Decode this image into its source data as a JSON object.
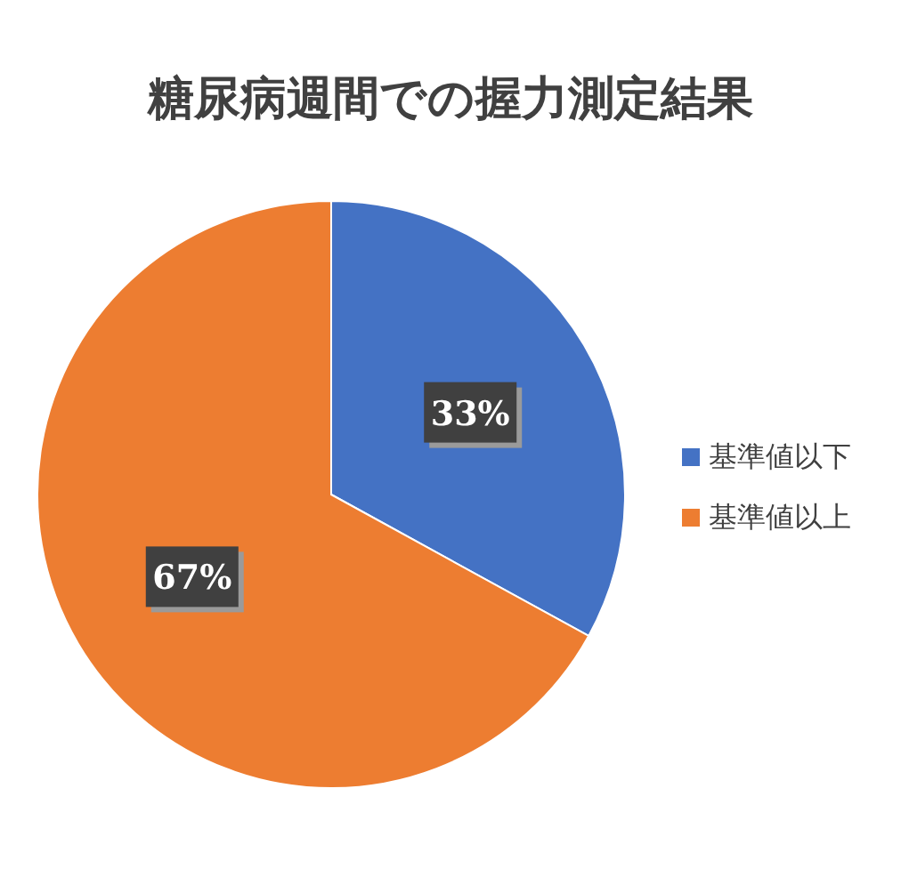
{
  "chart_data": {
    "type": "pie",
    "title": "糖尿病週間での握力測定結果",
    "categories": [
      "基準値以下",
      "基準値以上"
    ],
    "values": [
      33,
      67
    ],
    "colors": [
      "#4472c4",
      "#ed7d31"
    ],
    "value_labels": [
      "33%",
      "67%"
    ],
    "legend": "right"
  }
}
